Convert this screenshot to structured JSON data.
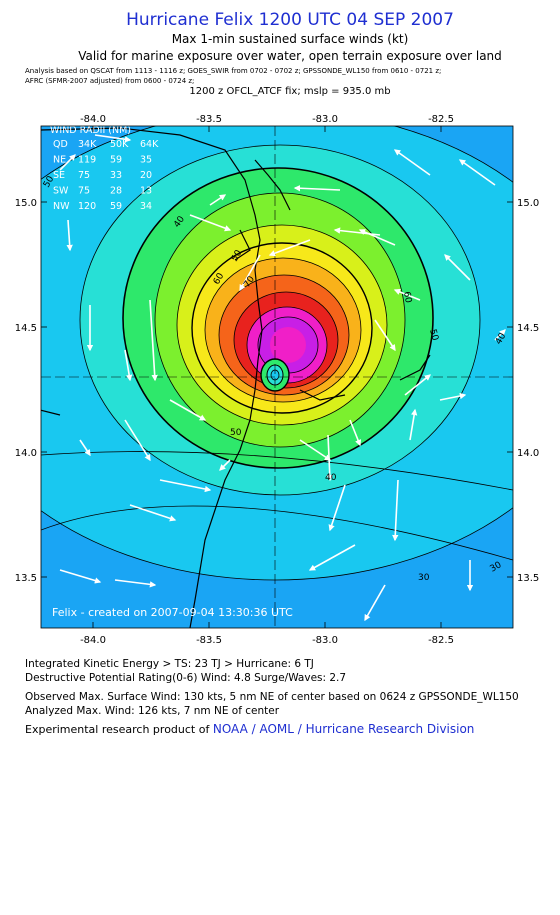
{
  "header": {
    "title": "Hurricane Felix 1200 UTC 04 SEP 2007",
    "subtitle1": "Max 1-min sustained surface winds (kt)",
    "subtitle2": "Valid for marine exposure over water, open terrain exposure over land",
    "analysis_line1": "Analysis based on  QSCAT from 1113 - 1116 z;  GOES_SWIR from 0702 - 0702 z;  GPSSONDE_WL150 from 0610 - 0721 z;",
    "analysis_line2": "AFRC  (SFMR-2007 adjusted) from 0600 - 0724 z;",
    "fix_line": "1200 z OFCL_ATCF fix; mslp = 935.0 mb"
  },
  "map": {
    "x_ticks": [
      "-84.0",
      "-83.5",
      "-83.0",
      "-82.5"
    ],
    "y_ticks": [
      "15.0",
      "14.5",
      "14.0",
      "13.5"
    ],
    "watermark": "Felix  -  created on 2007-09-04  13:30:36 UTC",
    "contour_labels": [
      "50",
      "40",
      "50",
      "60",
      "70",
      "60",
      "50",
      "40",
      "30",
      "30",
      "50",
      "40"
    ],
    "wind_radii": {
      "header": [
        "QD",
        "34K",
        "50K",
        "64K"
      ],
      "title": "WIND RADII (NM)",
      "rows": [
        [
          "NE",
          "119",
          "59",
          "35"
        ],
        [
          "SE",
          "75",
          "33",
          "20"
        ],
        [
          "SW",
          "75",
          "28",
          "13"
        ],
        [
          "NW",
          "120",
          "59",
          "34"
        ]
      ]
    },
    "colors": {
      "c30": "#1aa5f4",
      "c40": "#19c8f0",
      "c50": "#27e0d6",
      "c60": "#2ee86b",
      "c65": "#7cf02e",
      "c70": "#d8f01a",
      "c75": "#f7e81a",
      "c80": "#f9b21a",
      "c90": "#f5641a",
      "c100": "#e8221e",
      "c110": "#f01fc8",
      "c120": "#c81fe6",
      "land_line": "#000000"
    }
  },
  "footer": {
    "ike": "Integrated Kinetic Energy > TS: 23 TJ   > Hurricane: 6 TJ",
    "dpr": "Destructive Potential Rating(0-6)   Wind: 4.8 Surge/Waves: 2.7",
    "obs": "Observed Max. Surface Wind: 130 kts, 5 nm NE of center based on 0624 z GPSSONDE_WL150",
    "ana": "Analyzed Max. Wind: 126 kts, 7 nm NE of center",
    "credit_prefix": "Experimental research product of ",
    "credit_org": "NOAA / AOML / Hurricane Research Division"
  }
}
